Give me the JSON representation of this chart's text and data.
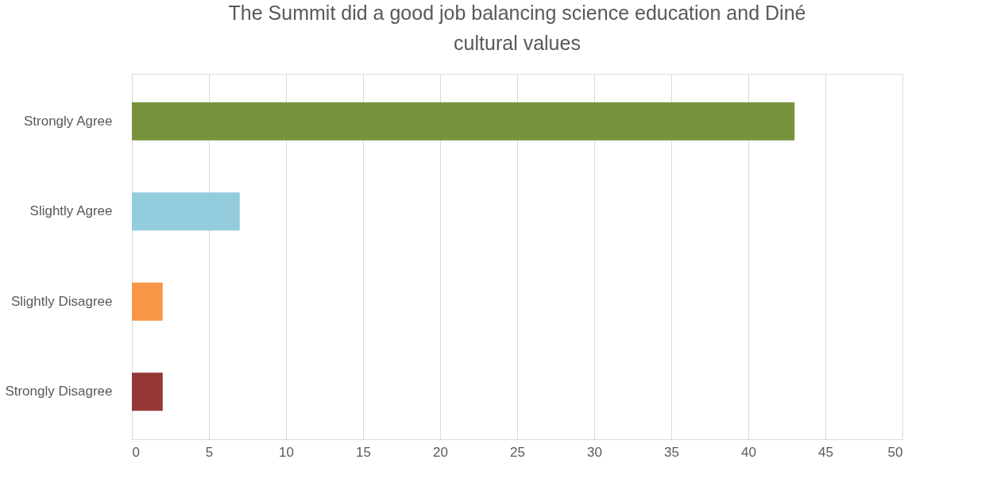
{
  "chart_data": {
    "type": "bar",
    "orientation": "horizontal",
    "title": "The Summit did a good job balancing science education and Diné cultural values",
    "categories": [
      "Strongly Agree",
      "Slightly Agree",
      "Slightly Disagree",
      "Strongly Disagree"
    ],
    "values": [
      43,
      7,
      2,
      2
    ],
    "colors": [
      "#77933c",
      "#93cddd",
      "#f79646",
      "#953735"
    ],
    "xlim": [
      0,
      50
    ],
    "xticks": [
      0,
      5,
      10,
      15,
      20,
      25,
      30,
      35,
      40,
      45,
      50
    ],
    "grid": "x"
  }
}
